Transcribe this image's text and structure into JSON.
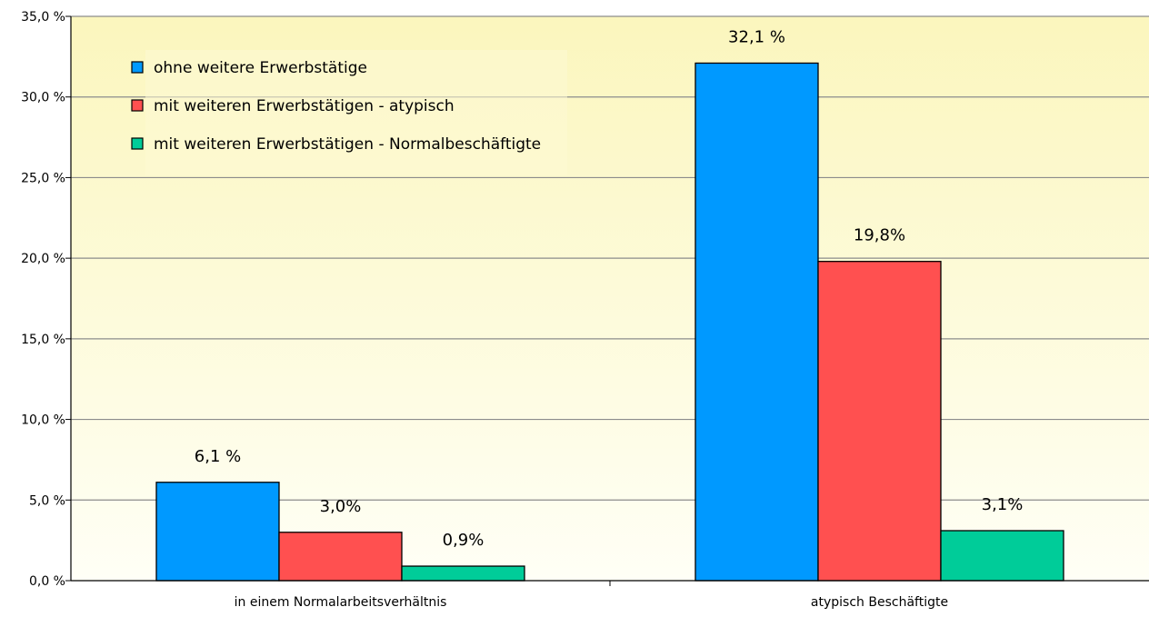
{
  "chart_data": {
    "type": "bar",
    "title": "",
    "xlabel": "",
    "ylabel": "",
    "categories": [
      "in einem Normalarbeitsverhältnis",
      "atypisch Beschäftigte"
    ],
    "series": [
      {
        "name": "ohne weitere Erwerbstätige",
        "color": "#0099ff",
        "values": [
          6.1,
          32.1
        ],
        "labels": [
          "6,1 %",
          "32,1 %"
        ]
      },
      {
        "name": "mit weiteren Erwerbstätigen - atypisch",
        "color": "#ff5050",
        "values": [
          3.0,
          19.8
        ],
        "labels": [
          "3,0%",
          "19,8%"
        ]
      },
      {
        "name": "mit weiteren Erwerbstätigen - Normalbeschäftigte",
        "color": "#00cc99",
        "values": [
          0.9,
          3.1
        ],
        "labels": [
          "0,9%",
          "3,1%"
        ]
      }
    ],
    "ylim": [
      0,
      35
    ],
    "yticks": [
      0,
      5,
      10,
      15,
      20,
      25,
      30,
      35
    ],
    "ytick_labels": [
      "0,0 %",
      "5,0 %",
      "10,0 %",
      "15,0 %",
      "20,0 %",
      "25,0 %",
      "30,0 %",
      "35,0 %"
    ],
    "grid": true,
    "legend_position": "top-left",
    "plot_background": "light yellow gradient"
  }
}
